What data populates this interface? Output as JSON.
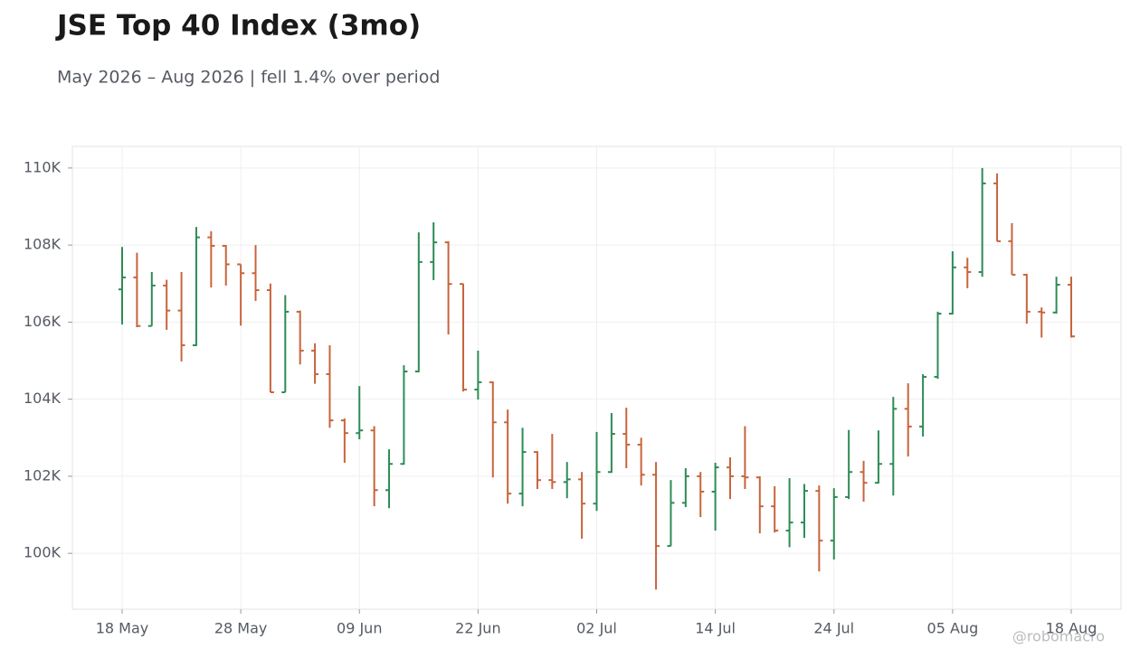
{
  "chart_data": {
    "type": "ohlc",
    "title": "JSE Top 40 Index (3mo)",
    "subtitle": "May 2026 – Aug 2026 | fell 1.4% over period",
    "watermark": "@robomacro",
    "categories": [
      "18 May",
      null,
      null,
      null,
      null,
      null,
      null,
      null,
      "28 May",
      null,
      null,
      null,
      null,
      null,
      null,
      null,
      "09 Jun",
      null,
      null,
      null,
      null,
      null,
      null,
      null,
      "22 Jun",
      null,
      null,
      null,
      null,
      null,
      null,
      null,
      "02 Jul",
      null,
      null,
      null,
      null,
      null,
      null,
      null,
      "14 Jul",
      null,
      null,
      null,
      null,
      null,
      null,
      null,
      "24 Jul",
      null,
      null,
      null,
      null,
      null,
      null,
      null,
      "05 Aug",
      null,
      null,
      null,
      null,
      null,
      null,
      null,
      "18 Aug"
    ],
    "open": [
      106850,
      107160,
      105900,
      106950,
      106300,
      105400,
      108200,
      107980,
      107500,
      107270,
      106830,
      104180,
      106270,
      105260,
      104650,
      103450,
      103120,
      103190,
      101640,
      102320,
      104720,
      107560,
      108070,
      106990,
      104250,
      104440,
      103400,
      101550,
      102630,
      101900,
      101850,
      101920,
      101290,
      102110,
      103100,
      102820,
      102040,
      100190,
      101310,
      102000,
      101600,
      102230,
      102000,
      101970,
      101220,
      100590,
      100800,
      101620,
      100330,
      101460,
      102110,
      101830,
      102320,
      103750,
      103290,
      104580,
      106220,
      107420,
      107300,
      109600,
      108100,
      107230,
      106270,
      106250,
      106970
    ],
    "high": [
      107950,
      107800,
      107300,
      107100,
      107300,
      108470,
      108360,
      108000,
      107500,
      108000,
      107000,
      106700,
      106300,
      105450,
      105400,
      103500,
      104340,
      103300,
      102700,
      104880,
      108330,
      108590,
      108100,
      107000,
      105260,
      104460,
      103730,
      103260,
      102650,
      103100,
      102370,
      102110,
      103150,
      103640,
      103780,
      103000,
      102370,
      101900,
      102210,
      102110,
      102350,
      102490,
      103300,
      102000,
      101740,
      101950,
      101800,
      101760,
      101690,
      103200,
      102400,
      103190,
      104060,
      104410,
      104650,
      106270,
      107840,
      107670,
      110000,
      109860,
      108570,
      107250,
      106380,
      107180,
      107180
    ],
    "low": [
      105940,
      105870,
      105900,
      105800,
      104980,
      105380,
      106900,
      106950,
      105910,
      106550,
      104180,
      104180,
      104900,
      104400,
      103260,
      102350,
      102960,
      101220,
      101170,
      102300,
      104700,
      107090,
      105680,
      104200,
      103990,
      101970,
      101290,
      101220,
      101670,
      101670,
      101430,
      100380,
      101100,
      102090,
      102210,
      101760,
      99060,
      100190,
      101200,
      100940,
      100590,
      101410,
      101670,
      100520,
      100540,
      100160,
      100400,
      99530,
      99840,
      101410,
      101340,
      101810,
      101500,
      102510,
      103030,
      104530,
      106200,
      106880,
      107180,
      108100,
      107230,
      105960,
      105600,
      106220,
      105600
    ],
    "close": [
      107160,
      105900,
      106950,
      106300,
      105400,
      108200,
      107980,
      107500,
      107270,
      106830,
      104180,
      106270,
      105260,
      104650,
      103450,
      103120,
      103190,
      101640,
      102320,
      104720,
      107560,
      108070,
      106990,
      104250,
      104440,
      103400,
      101550,
      102630,
      101900,
      101850,
      101920,
      101290,
      102110,
      103100,
      102820,
      102040,
      100190,
      101310,
      102000,
      101600,
      102230,
      102000,
      101970,
      101220,
      100590,
      100800,
      101620,
      100330,
      101460,
      102110,
      101830,
      102320,
      103750,
      103290,
      104580,
      106220,
      107420,
      107300,
      109600,
      108100,
      107230,
      106270,
      106250,
      106970,
      105630
    ],
    "up_color": "#2e8b57",
    "down_color": "#c8643c",
    "ylim": [
      98550,
      110560
    ],
    "yticks": [
      {
        "value": 100000,
        "label": "100K"
      },
      {
        "value": 102000,
        "label": "102K"
      },
      {
        "value": 104000,
        "label": "104K"
      },
      {
        "value": 106000,
        "label": "106K"
      },
      {
        "value": 108000,
        "label": "108K"
      },
      {
        "value": 110000,
        "label": "110K"
      }
    ],
    "grid": true
  }
}
